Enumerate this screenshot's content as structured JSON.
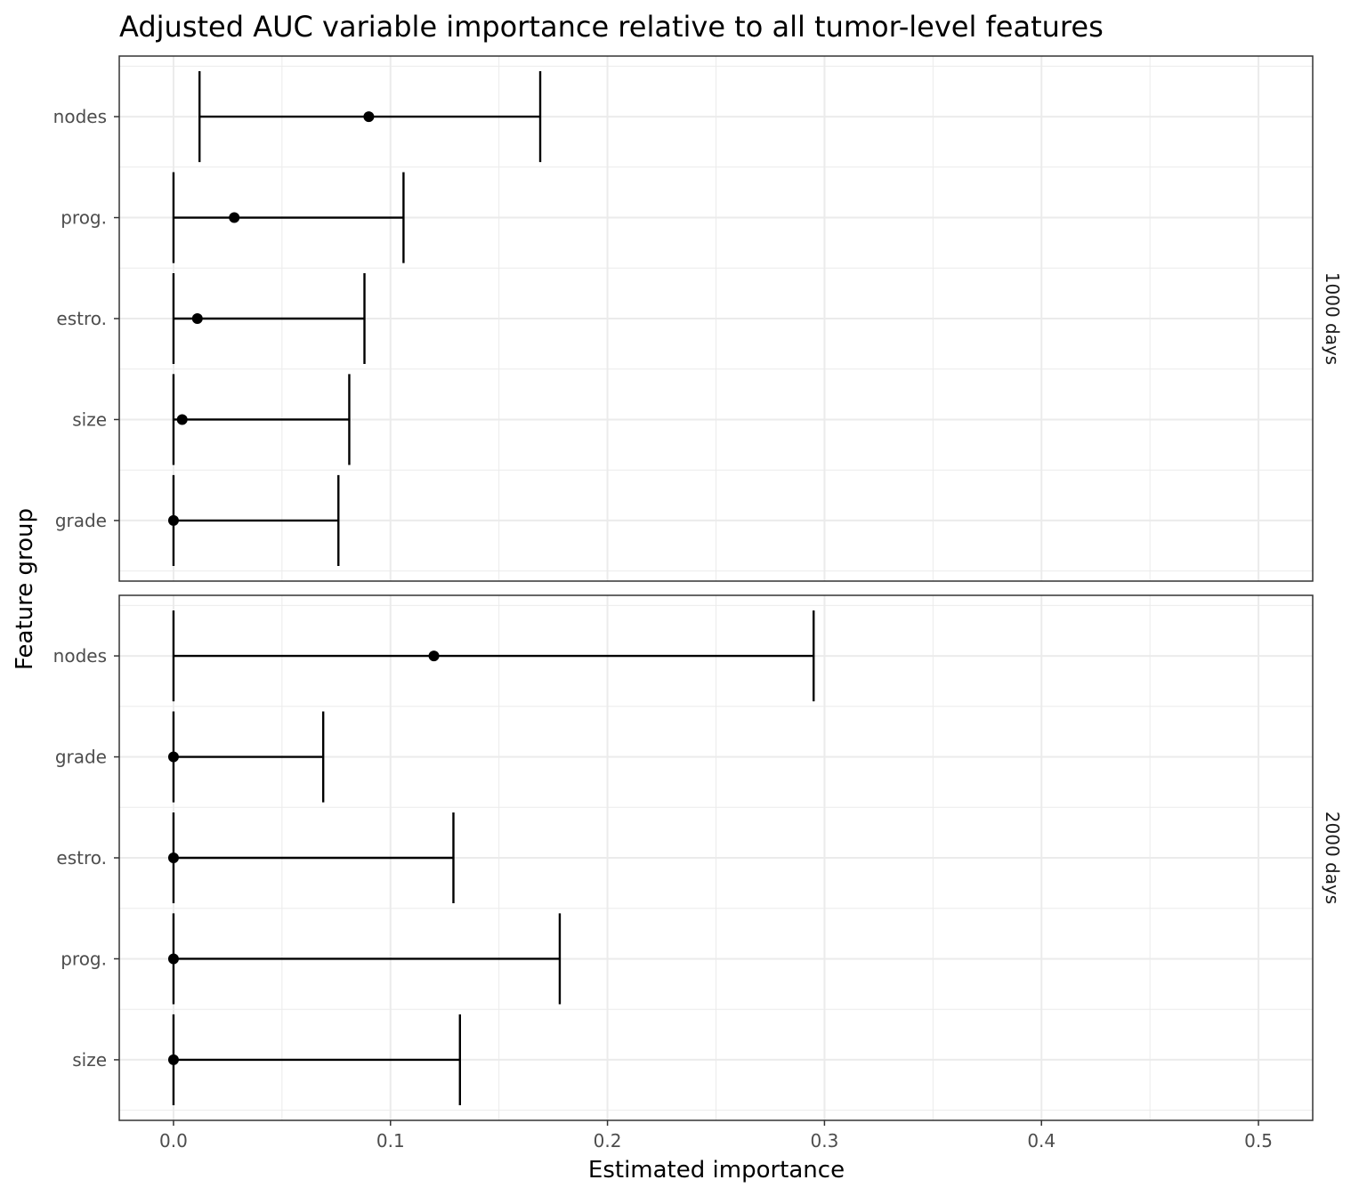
{
  "chart_data": {
    "type": "errorbar-dot",
    "title": "Adjusted AUC variable importance relative to all tumor-level features",
    "xlabel": "Estimated importance",
    "ylabel": "Feature group",
    "xlim": [
      -0.025,
      0.525
    ],
    "x_ticks": [
      0.0,
      0.1,
      0.2,
      0.3,
      0.4,
      0.5
    ],
    "x_tick_labels": [
      "0.0",
      "0.1",
      "0.2",
      "0.3",
      "0.4",
      "0.5"
    ],
    "grid": true,
    "facets": [
      {
        "label": "1000 days",
        "items": [
          {
            "feature": "nodes",
            "estimate": 0.09,
            "lower": 0.012,
            "upper": 0.169
          },
          {
            "feature": "prog.",
            "estimate": 0.028,
            "lower": 0.0,
            "upper": 0.106
          },
          {
            "feature": "estro.",
            "estimate": 0.011,
            "lower": 0.0,
            "upper": 0.088
          },
          {
            "feature": "size",
            "estimate": 0.004,
            "lower": 0.0,
            "upper": 0.081
          },
          {
            "feature": "grade",
            "estimate": 0.0,
            "lower": 0.0,
            "upper": 0.076
          }
        ]
      },
      {
        "label": "2000 days",
        "items": [
          {
            "feature": "nodes",
            "estimate": 0.12,
            "lower": 0.0,
            "upper": 0.295
          },
          {
            "feature": "grade",
            "estimate": 0.0,
            "lower": 0.0,
            "upper": 0.069
          },
          {
            "feature": "estro.",
            "estimate": 0.0,
            "lower": 0.0,
            "upper": 0.129
          },
          {
            "feature": "prog.",
            "estimate": 0.0,
            "lower": 0.0,
            "upper": 0.178
          },
          {
            "feature": "size",
            "estimate": 0.0,
            "lower": 0.0,
            "upper": 0.132
          }
        ]
      }
    ]
  }
}
